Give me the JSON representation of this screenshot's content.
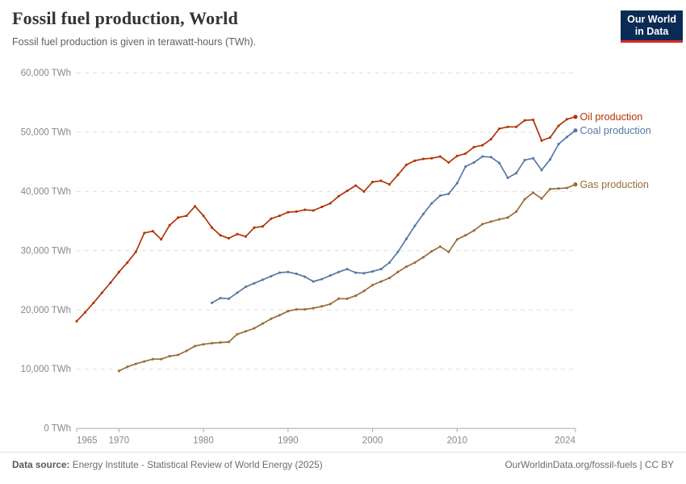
{
  "header": {
    "title": "Fossil fuel production, World",
    "subtitle": "Fossil fuel production is given in terawatt-hours (TWh).",
    "logo": {
      "line1": "Our World",
      "line2": "in Data"
    }
  },
  "chart_data": {
    "type": "line",
    "title": "Fossil fuel production, World",
    "unit": "TWh",
    "grid": "dashed-horizontal",
    "legend_position": "end-of-line-labels",
    "x_axis": {
      "range": [
        1965,
        2024
      ],
      "ticks": [
        1965,
        1970,
        1980,
        1990,
        2000,
        2010,
        2024
      ],
      "tick_labels": [
        "1965",
        "1970",
        "1980",
        "1990",
        "2000",
        "2010",
        "2024"
      ]
    },
    "y_axis": {
      "range": [
        0,
        60000
      ],
      "ticks": [
        0,
        10000,
        20000,
        30000,
        40000,
        50000,
        60000
      ],
      "tick_labels": [
        "0 TWh",
        "10,000 TWh",
        "20,000 TWh",
        "30,000 TWh",
        "40,000 TWh",
        "50,000 TWh",
        "60,000 TWh"
      ]
    },
    "series": [
      {
        "name": "Oil production",
        "color": "#B13507",
        "start_year": 1965,
        "end_year": 2024,
        "values": [
          18100,
          19600,
          21200,
          22900,
          24600,
          26400,
          28000,
          29800,
          33000,
          33300,
          31900,
          34300,
          35600,
          35900,
          37500,
          35900,
          33900,
          32600,
          32100,
          32800,
          32400,
          33900,
          34100,
          35400,
          35900,
          36500,
          36600,
          36900,
          36800,
          37400,
          38000,
          39200,
          40100,
          41000,
          40000,
          41600,
          41800,
          41200,
          42800,
          44500,
          45200,
          45500,
          45600,
          45900,
          44900,
          46000,
          46400,
          47500,
          47800,
          48800,
          50600,
          50900,
          50900,
          52000,
          52100,
          48600,
          49100,
          51100,
          52200,
          52600
        ]
      },
      {
        "name": "Coal production",
        "color": "#5878A3",
        "start_year": 1981,
        "end_year": 2024,
        "values": [
          21200,
          22000,
          21900,
          22900,
          23900,
          24500,
          25100,
          25700,
          26300,
          26400,
          26100,
          25600,
          24800,
          25200,
          25800,
          26400,
          26900,
          26300,
          26200,
          26500,
          26900,
          28000,
          29800,
          32000,
          34200,
          36200,
          38000,
          39300,
          39600,
          41400,
          44200,
          44900,
          45900,
          45800,
          44800,
          42300,
          43100,
          45300,
          45600,
          43600,
          45400,
          48000,
          49200,
          50300
        ]
      },
      {
        "name": "Gas production",
        "color": "#996D39",
        "start_year": 1970,
        "end_year": 2024,
        "values": [
          9700,
          10400,
          10900,
          11300,
          11700,
          11700,
          12200,
          12400,
          13100,
          13900,
          14200,
          14400,
          14500,
          14600,
          15900,
          16400,
          16900,
          17700,
          18500,
          19100,
          19800,
          20100,
          20100,
          20300,
          20600,
          21000,
          21900,
          21900,
          22400,
          23200,
          24200,
          24800,
          25400,
          26400,
          27300,
          28000,
          28900,
          29900,
          30700,
          29800,
          31900,
          32600,
          33400,
          34500,
          34900,
          35300,
          35600,
          36600,
          38700,
          39800,
          38800,
          40400,
          40500,
          40600,
          41200
        ]
      }
    ]
  },
  "footer": {
    "datasource_label": "Data source:",
    "datasource_text": "Energy Institute - Statistical Review of World Energy (2025)",
    "link_text": "OurWorldinData.org/fossil-fuels",
    "separator": "|",
    "license_text": "CC BY"
  }
}
